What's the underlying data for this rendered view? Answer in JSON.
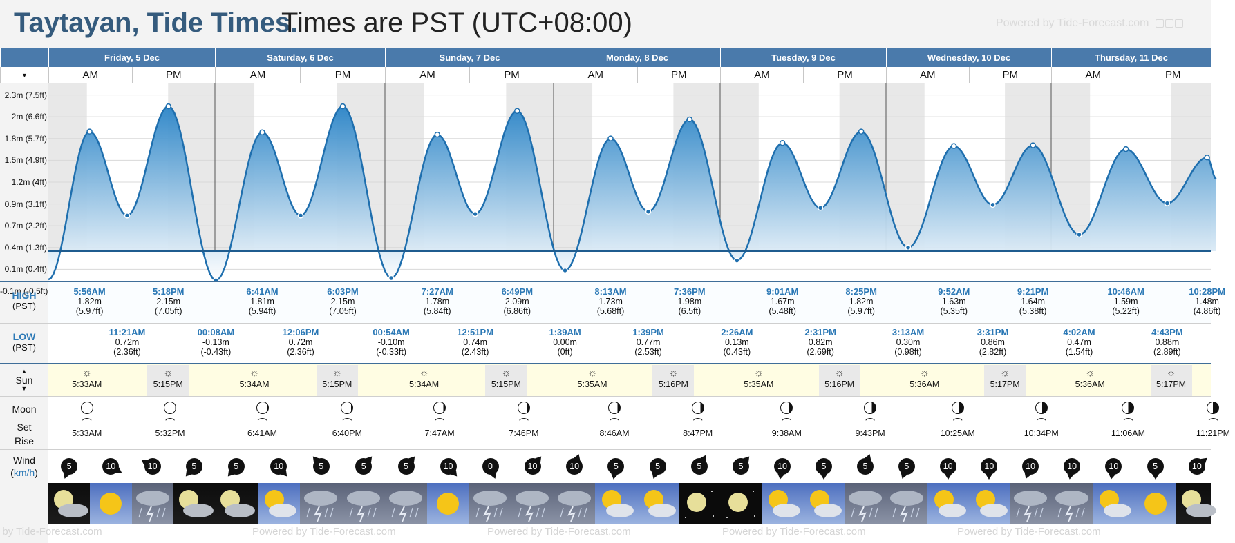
{
  "title": {
    "main": "Taytayan, Tide Times.",
    "sub": "Times are PST (UTC+08:00)"
  },
  "powered_by": "Powered by Tide-Forecast.com",
  "days": [
    "Friday, 5 Dec",
    "Saturday, 6 Dec",
    "Sunday, 7 Dec",
    "Monday, 8 Dec",
    "Tuesday, 9 Dec",
    "Wednesday, 10 Dec",
    "Thursday, 11 Dec"
  ],
  "am_label": "AM",
  "pm_label": "PM",
  "y_axis_labels": [
    "2.3m (7.5ft)",
    "2m (6.6ft)",
    "1.8m (5.7ft)",
    "1.5m (4.9ft)",
    "1.2m (4ft)",
    "0.9m (3.1ft)",
    "0.7m (2.2ft)",
    "0.4m (1.3ft)",
    "0.1m (0.4ft)",
    "-0.1m (-0.5ft)"
  ],
  "labels": {
    "high": "HIGH",
    "low": "LOW",
    "tz": "(PST)",
    "sun": "Sun",
    "moon": "Moon",
    "set": "Set",
    "rise": "Rise",
    "wind": "Wind",
    "wind_unit": "km/h"
  },
  "tides": [
    {
      "type": "high",
      "time": "5:56AM",
      "m": "1.82m",
      "ft": "(5.97ft)",
      "h": 1.82
    },
    {
      "type": "low",
      "time": "11:21AM",
      "m": "0.72m",
      "ft": "(2.36ft)",
      "h": 0.72
    },
    {
      "type": "high",
      "time": "5:18PM",
      "m": "2.15m",
      "ft": "(7.05ft)",
      "h": 2.15
    },
    {
      "type": "low",
      "time": "00:08AM",
      "m": "-0.13m",
      "ft": "(-0.43ft)",
      "h": -0.13
    },
    {
      "type": "high",
      "time": "6:41AM",
      "m": "1.81m",
      "ft": "(5.94ft)",
      "h": 1.81
    },
    {
      "type": "low",
      "time": "12:06PM",
      "m": "0.72m",
      "ft": "(2.36ft)",
      "h": 0.72
    },
    {
      "type": "high",
      "time": "6:03PM",
      "m": "2.15m",
      "ft": "(7.05ft)",
      "h": 2.15
    },
    {
      "type": "low",
      "time": "00:54AM",
      "m": "-0.10m",
      "ft": "(-0.33ft)",
      "h": -0.1
    },
    {
      "type": "high",
      "time": "7:27AM",
      "m": "1.78m",
      "ft": "(5.84ft)",
      "h": 1.78
    },
    {
      "type": "low",
      "time": "12:51PM",
      "m": "0.74m",
      "ft": "(2.43ft)",
      "h": 0.74
    },
    {
      "type": "high",
      "time": "6:49PM",
      "m": "2.09m",
      "ft": "(6.86ft)",
      "h": 2.09
    },
    {
      "type": "low",
      "time": "1:39AM",
      "m": "0.00m",
      "ft": "(0ft)",
      "h": 0.0
    },
    {
      "type": "high",
      "time": "8:13AM",
      "m": "1.73m",
      "ft": "(5.68ft)",
      "h": 1.73
    },
    {
      "type": "low",
      "time": "1:39PM",
      "m": "0.77m",
      "ft": "(2.53ft)",
      "h": 0.77
    },
    {
      "type": "high",
      "time": "7:36PM",
      "m": "1.98m",
      "ft": "(6.5ft)",
      "h": 1.98
    },
    {
      "type": "low",
      "time": "2:26AM",
      "m": "0.13m",
      "ft": "(0.43ft)",
      "h": 0.13
    },
    {
      "type": "high",
      "time": "9:01AM",
      "m": "1.67m",
      "ft": "(5.48ft)",
      "h": 1.67
    },
    {
      "type": "low",
      "time": "2:31PM",
      "m": "0.82m",
      "ft": "(2.69ft)",
      "h": 0.82
    },
    {
      "type": "high",
      "time": "8:25PM",
      "m": "1.82m",
      "ft": "(5.97ft)",
      "h": 1.82
    },
    {
      "type": "low",
      "time": "3:13AM",
      "m": "0.30m",
      "ft": "(0.98ft)",
      "h": 0.3
    },
    {
      "type": "high",
      "time": "9:52AM",
      "m": "1.63m",
      "ft": "(5.35ft)",
      "h": 1.63
    },
    {
      "type": "low",
      "time": "3:31PM",
      "m": "0.86m",
      "ft": "(2.82ft)",
      "h": 0.86
    },
    {
      "type": "high",
      "time": "9:21PM",
      "m": "1.64m",
      "ft": "(5.38ft)",
      "h": 1.64
    },
    {
      "type": "low",
      "time": "4:02AM",
      "m": "0.47m",
      "ft": "(1.54ft)",
      "h": 0.47
    },
    {
      "type": "high",
      "time": "10:46AM",
      "m": "1.59m",
      "ft": "(5.22ft)",
      "h": 1.59
    },
    {
      "type": "low",
      "time": "4:43PM",
      "m": "0.88m",
      "ft": "(2.89ft)",
      "h": 0.88
    },
    {
      "type": "high",
      "time": "10:28PM",
      "m": "1.48m",
      "ft": "(4.86ft)",
      "h": 1.48
    }
  ],
  "sun": [
    {
      "rise": "5:33AM",
      "set": "5:15PM"
    },
    {
      "rise": "5:34AM",
      "set": "5:15PM"
    },
    {
      "rise": "5:34AM",
      "set": "5:15PM"
    },
    {
      "rise": "5:35AM",
      "set": "5:16PM"
    },
    {
      "rise": "5:35AM",
      "set": "5:16PM"
    },
    {
      "rise": "5:36AM",
      "set": "5:17PM"
    },
    {
      "rise": "5:36AM",
      "set": "5:17PM"
    }
  ],
  "moon": [
    {
      "time": "5:33AM",
      "kind": "set"
    },
    {
      "time": "5:32PM",
      "kind": "rise"
    },
    {
      "time": "6:41AM",
      "kind": "set"
    },
    {
      "time": "6:40PM",
      "kind": "rise"
    },
    {
      "time": "7:47AM",
      "kind": "set"
    },
    {
      "time": "7:46PM",
      "kind": "rise"
    },
    {
      "time": "8:46AM",
      "kind": "set"
    },
    {
      "time": "8:47PM",
      "kind": "rise"
    },
    {
      "time": "9:38AM",
      "kind": "set"
    },
    {
      "time": "9:43PM",
      "kind": "rise"
    },
    {
      "time": "10:25AM",
      "kind": "set"
    },
    {
      "time": "10:34PM",
      "kind": "rise"
    },
    {
      "time": "11:06AM",
      "kind": "set"
    },
    {
      "time": "11:21PM",
      "kind": "rise"
    }
  ],
  "wind": [
    "5",
    "10",
    "10",
    "5",
    "5",
    "10",
    "5",
    "5",
    "5",
    "10",
    "0",
    "10",
    "10",
    "5",
    "5",
    "5",
    "5",
    "10",
    "5",
    "5",
    "5",
    "10",
    "10",
    "10",
    "10",
    "10",
    "5",
    "10"
  ],
  "weather_icons": [
    "night-partly-cloudy",
    "sunny",
    "storm",
    "night-partly-cloudy",
    "night-partly-cloudy",
    "partly-sunny",
    "storm",
    "storm",
    "storm",
    "sunny",
    "storm",
    "storm",
    "storm",
    "partly-sunny",
    "partly-sunny",
    "clear-night",
    "clear-night",
    "partly-sunny",
    "partly-sunny",
    "storm",
    "storm",
    "partly-sunny",
    "partly-sunny",
    "storm",
    "storm",
    "partly-sunny",
    "sunny",
    "night-partly-cloudy"
  ],
  "colors": {
    "header": "#4a7aab",
    "title": "#355b7d",
    "tide": "#2a84c7",
    "sun_bg": "#fffde3",
    "high_label": "#2c79b6"
  }
}
